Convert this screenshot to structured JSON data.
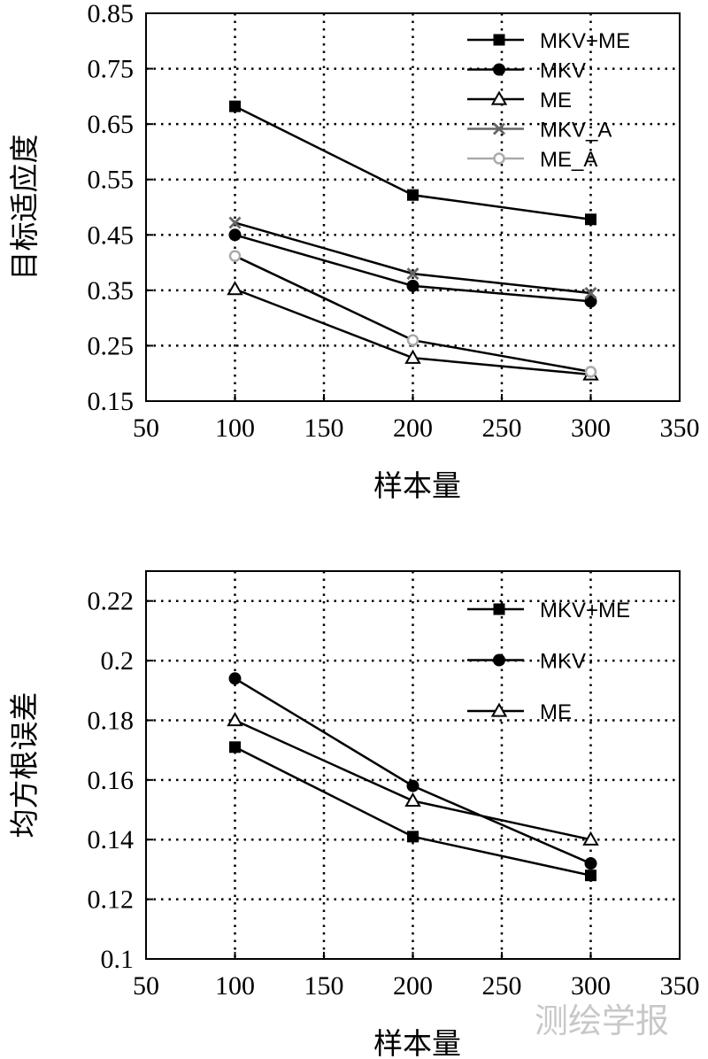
{
  "colors": {
    "black": "#000000",
    "gray": "#666666",
    "light_gray": "#aaaaaa",
    "watermark": "#c8c8c8"
  },
  "watermark_text": "测绘学报",
  "chart_data": [
    {
      "type": "line",
      "xlabel": "样本量",
      "ylabel": "目标适应度",
      "xlim": [
        50,
        350
      ],
      "ylim": [
        0.15,
        0.85
      ],
      "xticks": [
        50,
        100,
        150,
        200,
        250,
        300,
        350
      ],
      "xtick_labels": [
        "50",
        "100",
        "150",
        "200",
        "250",
        "300",
        "350"
      ],
      "yticks": [
        0.15,
        0.25,
        0.35,
        0.45,
        0.55,
        0.65,
        0.75,
        0.85
      ],
      "ytick_labels": [
        "0.15",
        "0.25",
        "0.35",
        "0.45",
        "0.55",
        "0.65",
        "0.75",
        "0.85"
      ],
      "grid": true,
      "legend_position": "top-right",
      "x": [
        100,
        200,
        300
      ],
      "series": [
        {
          "name": "MKV+ME",
          "values": [
            0.682,
            0.522,
            0.478
          ],
          "marker": "square",
          "color": "#000000"
        },
        {
          "name": "MKV",
          "values": [
            0.45,
            0.358,
            0.33
          ],
          "marker": "circle",
          "color": "#000000"
        },
        {
          "name": "ME",
          "values": [
            0.352,
            0.228,
            0.198
          ],
          "marker": "triangle",
          "color": "#000000"
        },
        {
          "name": "MKV_A",
          "values": [
            0.472,
            0.38,
            0.345
          ],
          "marker": "x",
          "color": "#666666"
        },
        {
          "name": "ME_A",
          "values": [
            0.412,
            0.26,
            0.203
          ],
          "marker": "hollow-circle",
          "color": "#aaaaaa"
        }
      ]
    },
    {
      "type": "line",
      "xlabel": "样本量",
      "ylabel": "均方根误差",
      "xlim": [
        50,
        350
      ],
      "ylim": [
        0.1,
        0.23
      ],
      "xticks": [
        50,
        100,
        150,
        200,
        250,
        300,
        350
      ],
      "xtick_labels": [
        "50",
        "100",
        "150",
        "200",
        "250",
        "300",
        "350"
      ],
      "yticks": [
        0.1,
        0.12,
        0.14,
        0.16,
        0.18,
        0.2,
        0.22
      ],
      "ytick_labels": [
        "0.1",
        "0.12",
        "0.14",
        "0.16",
        "0.18",
        "0.2",
        "0.22"
      ],
      "grid": true,
      "legend_position": "top-right",
      "x": [
        100,
        200,
        300
      ],
      "series": [
        {
          "name": "MKV+ME",
          "values": [
            0.171,
            0.141,
            0.128
          ],
          "marker": "square",
          "color": "#000000"
        },
        {
          "name": "MKV",
          "values": [
            0.194,
            0.158,
            0.132
          ],
          "marker": "circle",
          "color": "#000000"
        },
        {
          "name": "ME",
          "values": [
            0.18,
            0.153,
            0.14
          ],
          "marker": "triangle",
          "color": "#000000"
        }
      ]
    }
  ]
}
